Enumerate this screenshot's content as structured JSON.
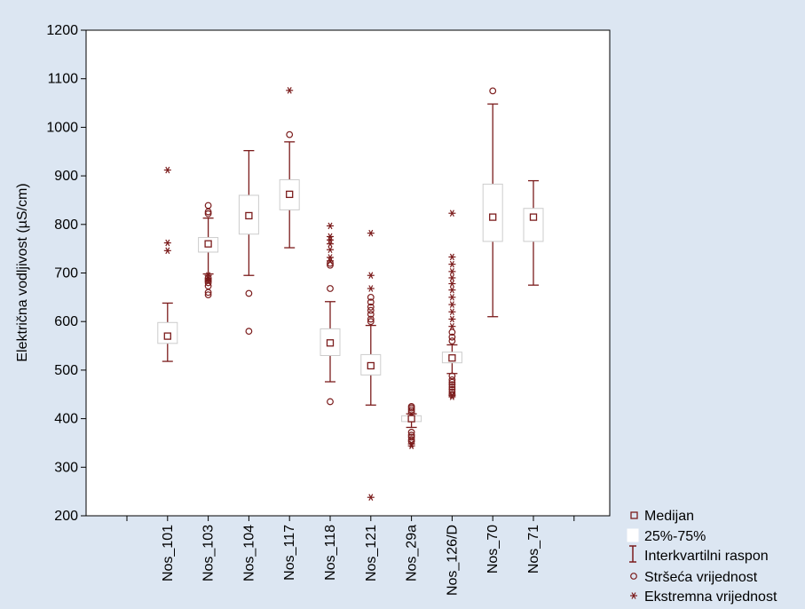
{
  "chart_data": {
    "type": "boxplot",
    "ylabel": "Električna vodljivost (µS/cm)",
    "ylim": [
      200,
      1200
    ],
    "yticks": [
      200,
      300,
      400,
      500,
      600,
      700,
      800,
      900,
      1000,
      1100,
      1200
    ],
    "grid": false,
    "legend_position": "bottom-right",
    "colors": {
      "marks": "#7b1c1c",
      "box_fill": "#ffffff",
      "background": "#dce6f2",
      "plot_bg": "#ffffff"
    },
    "categories": [
      "Nos_101",
      "Nos_103",
      "Nos_104",
      "Nos_117",
      "Nos_118",
      "Nos_121",
      "Nos_29a",
      "Nos_126/D",
      "Nos_70",
      "Nos_71"
    ],
    "boxes": [
      {
        "category": "Nos_101",
        "median": 570,
        "q1": 555,
        "q3": 598,
        "whisker_low": 518,
        "whisker_high": 638,
        "outliers": [],
        "extremes": [
          912,
          762,
          746
        ]
      },
      {
        "category": "Nos_103",
        "median": 760,
        "q1": 743,
        "q3": 773,
        "whisker_low": 698,
        "whisker_high": 813,
        "outliers": [
          839,
          826,
          822,
          690,
          685,
          680,
          673,
          660,
          655
        ],
        "extremes": [
          695,
          688,
          683
        ]
      },
      {
        "category": "Nos_104",
        "median": 818,
        "q1": 780,
        "q3": 860,
        "whisker_low": 695,
        "whisker_high": 952,
        "outliers": [
          658,
          580
        ],
        "extremes": []
      },
      {
        "category": "Nos_117",
        "median": 862,
        "q1": 830,
        "q3": 892,
        "whisker_low": 752,
        "whisker_high": 970,
        "outliers": [
          985
        ],
        "extremes": [
          1076
        ]
      },
      {
        "category": "Nos_118",
        "median": 556,
        "q1": 530,
        "q3": 585,
        "whisker_low": 476,
        "whisker_high": 641,
        "outliers": [
          668,
          435,
          720,
          716
        ],
        "extremes": [
          797,
          775,
          768,
          760,
          748,
          732,
          725
        ]
      },
      {
        "category": "Nos_121",
        "median": 509,
        "q1": 490,
        "q3": 532,
        "whisker_low": 428,
        "whisker_high": 592,
        "outliers": [
          650,
          640,
          630,
          623,
          615,
          605,
          600
        ],
        "extremes": [
          782,
          695,
          668,
          238
        ]
      },
      {
        "category": "Nos_29a",
        "median": 400,
        "q1": 394,
        "q3": 406,
        "whisker_low": 382,
        "whisker_high": 410,
        "outliers": [
          425,
          422,
          418,
          414,
          372,
          366,
          362,
          357,
          353
        ],
        "extremes": [
          344,
          348
        ]
      },
      {
        "category": "Nos_126/D",
        "median": 525,
        "q1": 515,
        "q3": 537,
        "whisker_low": 493,
        "whisker_high": 552,
        "outliers": [
          578,
          568,
          560,
          488,
          480,
          475,
          470,
          465,
          460,
          455,
          450
        ],
        "extremes": [
          823,
          733,
          718,
          703,
          690,
          678,
          665,
          650,
          635,
          620,
          605,
          590,
          445,
          448
        ]
      },
      {
        "category": "Nos_70",
        "median": 815,
        "q1": 765,
        "q3": 883,
        "whisker_low": 610,
        "whisker_high": 1048,
        "outliers": [
          1075
        ],
        "extremes": []
      },
      {
        "category": "Nos_71",
        "median": 815,
        "q1": 765,
        "q3": 833,
        "whisker_low": 675,
        "whisker_high": 890,
        "outliers": [],
        "extremes": []
      }
    ],
    "legend": {
      "median": "Medijan",
      "box": "25%-75%",
      "whisker": "Interkvartilni raspon",
      "outlier": "Stršeća vrijednost",
      "extreme": "Ekstremna vrijednost"
    }
  }
}
